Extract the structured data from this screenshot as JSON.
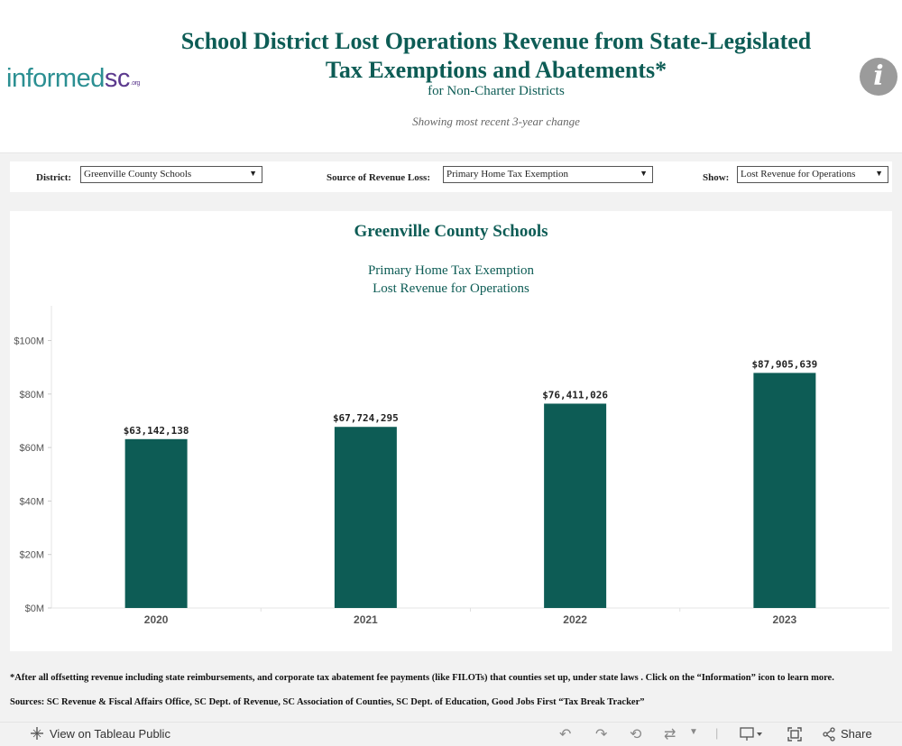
{
  "header": {
    "logo_part1": "informed",
    "logo_part2": "sc",
    "logo_suffix": ".org",
    "title_line1": "School District Lost Operations Revenue from State-Legislated",
    "title_line2": "Tax Exemptions and Abatements*",
    "subtitle": "for Non-Charter Districts",
    "note": "Showing most recent 3-year change",
    "info_icon": "i"
  },
  "filters": {
    "district_label": "District:",
    "district_value": "Greenville County Schools",
    "source_label": "Source of Revenue Loss:",
    "source_value": "Primary Home Tax Exemption",
    "show_label": "Show:",
    "show_value": "Lost Revenue for Operations"
  },
  "chart_data": {
    "type": "bar",
    "title": "Greenville County Schools",
    "subtitle_line1": "Primary Home Tax Exemption",
    "subtitle_line2": "Lost Revenue for Operations",
    "categories": [
      "2020",
      "2021",
      "2022",
      "2023"
    ],
    "values": [
      63142138,
      67724295,
      76411026,
      87905639
    ],
    "data_labels": [
      "$63,142,138",
      "$67,724,295",
      "$76,411,026",
      "$87,905,639"
    ],
    "y_ticks": [
      0,
      20000000,
      40000000,
      60000000,
      80000000,
      100000000
    ],
    "y_tick_labels": [
      "$0M",
      "$20M",
      "$40M",
      "$60M",
      "$80M",
      "$100M"
    ],
    "ylim": [
      0,
      113000000
    ],
    "xlabel": "",
    "ylabel": "",
    "bar_color": "#0d5c55",
    "grid": false,
    "legend": "none"
  },
  "footer": {
    "footnote": "*After all offsetting revenue including state reimbursements, and corporate tax abatement fee payments (like FILOTs) that counties set up, under state laws . Click on the “Information” icon to learn more.",
    "sources": "Sources: SC Revenue & Fiscal Affairs Office, SC Dept. of Revenue, SC Association of Counties, SC Dept. of Education, Good Jobs First “Tax Break Tracker”"
  },
  "toolbar": {
    "view_label": "View on Tableau Public",
    "share_label": "Share",
    "icons": [
      "tableau-icon",
      "undo-icon",
      "redo-icon",
      "revert-icon",
      "refresh-icon",
      "download-icon",
      "fullscreen-icon",
      "share-icon"
    ]
  },
  "colors": {
    "accent": "#0d5c55",
    "logo_teal": "#2b8f92",
    "logo_purple": "#5c3a8e",
    "info_gray": "#9b9b9b"
  }
}
